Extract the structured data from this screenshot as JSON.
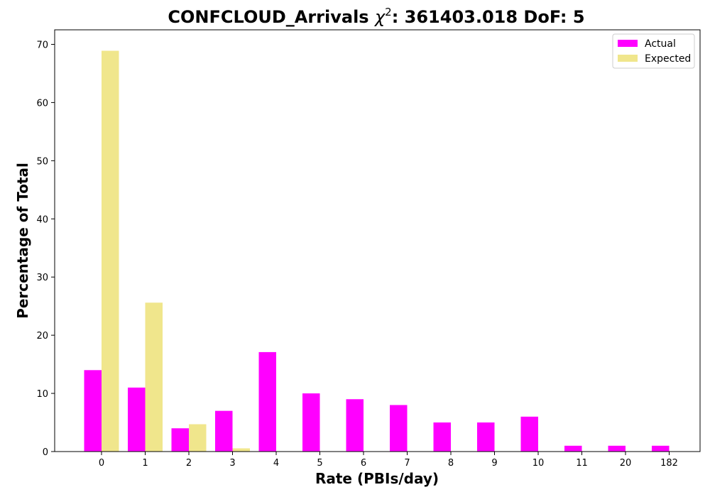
{
  "chart_data": {
    "type": "bar",
    "title_main": "CONFCLOUD_Arrivals",
    "title_chi": "χ",
    "title_sup": "2",
    "title_rest": ": 361403.018 DoF: 5",
    "xlabel": "Rate (PBIs/day)",
    "ylabel": "Percentage of Total",
    "categories": [
      "0",
      "1",
      "2",
      "3",
      "4",
      "5",
      "6",
      "7",
      "8",
      "9",
      "10",
      "11",
      "20",
      "182"
    ],
    "ylim": [
      0,
      72.5
    ],
    "yticks": [
      0,
      10,
      20,
      30,
      40,
      50,
      60,
      70
    ],
    "legend_position": "top-right",
    "series": [
      {
        "name": "Actual",
        "color": "#ff00ff",
        "values": [
          14,
          11,
          4,
          7,
          17.1,
          10,
          9,
          8,
          5,
          5,
          6,
          1,
          1,
          1
        ]
      },
      {
        "name": "Expected",
        "color": "#f0e68c",
        "values": [
          68.9,
          25.6,
          4.7,
          0.55,
          0.05,
          0,
          0,
          0,
          0,
          0,
          0,
          0,
          0,
          0
        ]
      }
    ]
  }
}
